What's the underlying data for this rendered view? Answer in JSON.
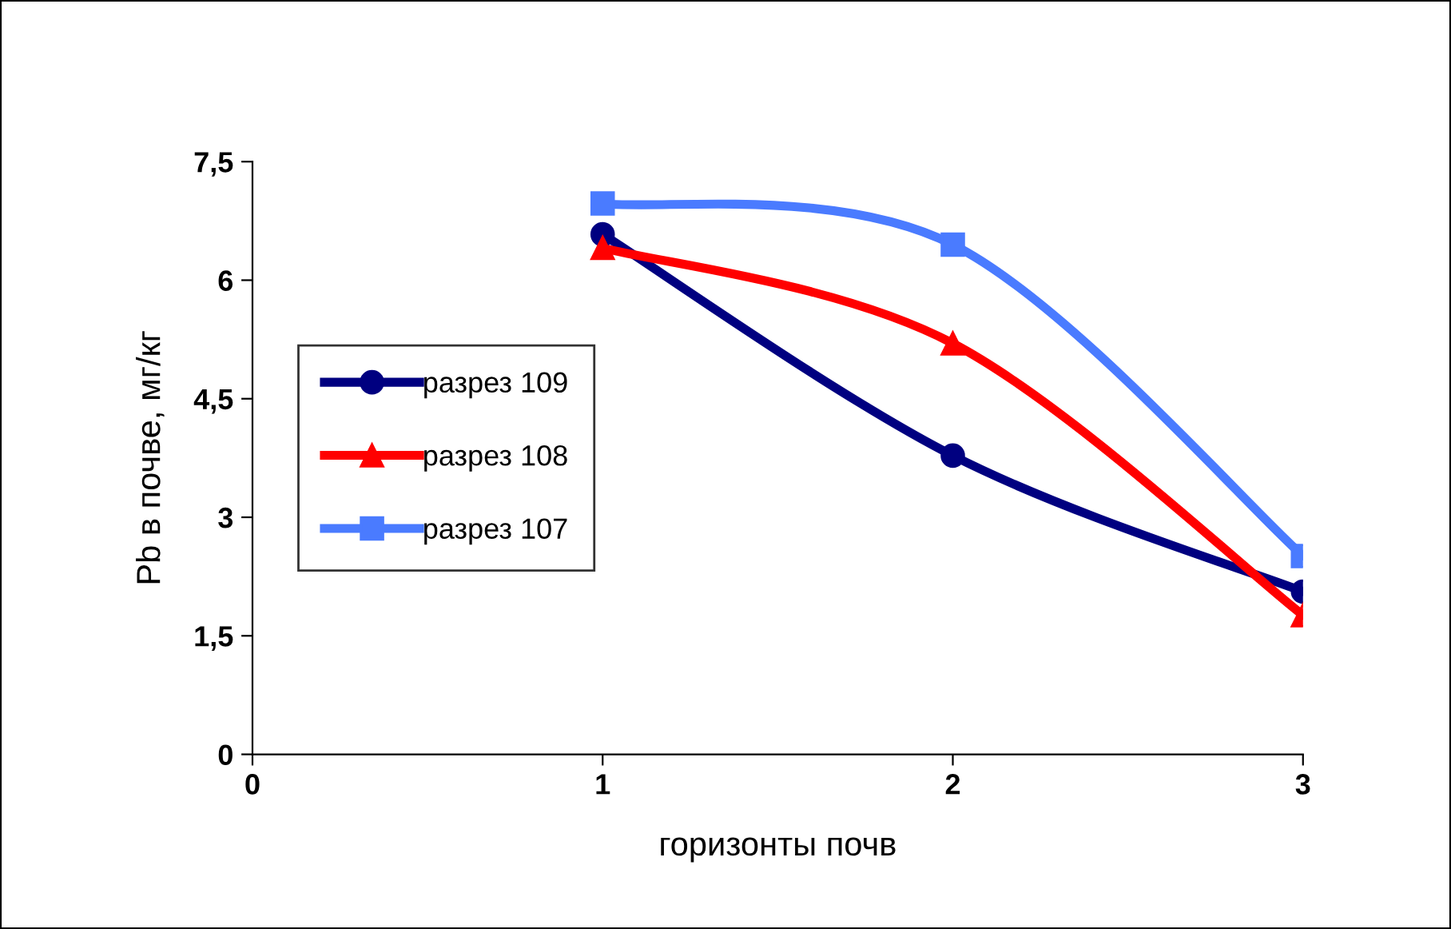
{
  "chart_data": {
    "type": "line",
    "xlabel": "горизонты почв",
    "ylabel": "Pb в почве, мг/кг",
    "x": [
      1,
      2,
      3
    ],
    "series": [
      {
        "name": "разрез 109",
        "color": "#000080",
        "marker": "circle",
        "values": [
          6.58,
          3.78,
          2.06
        ]
      },
      {
        "name": "разрез 108",
        "color": "#ff0000",
        "marker": "triangle",
        "values": [
          6.41,
          5.2,
          1.76
        ]
      },
      {
        "name": "разрез 107",
        "color": "#4a7bff",
        "marker": "square",
        "values": [
          6.97,
          6.45,
          2.51
        ]
      }
    ],
    "xlim": [
      0,
      3
    ],
    "xticks": [
      0,
      1,
      2,
      3
    ],
    "ylim": [
      0,
      7.5
    ],
    "yticks": [
      {
        "value": 0,
        "label": "0"
      },
      {
        "value": 1.5,
        "label": "1,5"
      },
      {
        "value": 3,
        "label": "3"
      },
      {
        "value": 4.5,
        "label": "4,5"
      },
      {
        "value": 6,
        "label": "6"
      },
      {
        "value": 7.5,
        "label": "7,5"
      }
    ],
    "grid": false,
    "legend": "left",
    "line_style": "solid"
  }
}
